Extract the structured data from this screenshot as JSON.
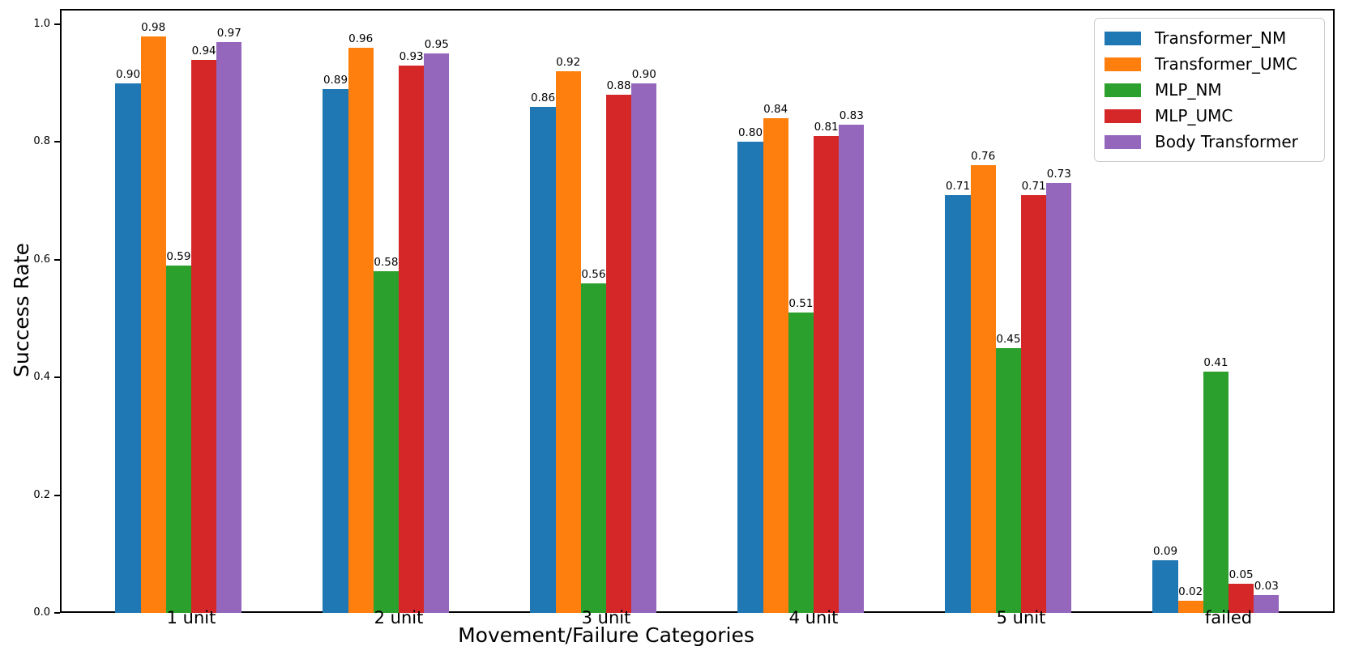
{
  "chart_data": {
    "type": "bar",
    "title": "",
    "xlabel": "Movement/Failure Categories",
    "ylabel": "Success Rate",
    "categories": [
      "1 unit",
      "2 unit",
      "3 unit",
      "4 unit",
      "5 unit",
      "failed"
    ],
    "series": [
      {
        "name": "Transformer_NM",
        "color": "#1f77b4",
        "values": [
          0.9,
          0.89,
          0.86,
          0.8,
          0.71,
          0.09
        ]
      },
      {
        "name": "Transformer_UMC",
        "color": "#ff7f0e",
        "values": [
          0.98,
          0.96,
          0.92,
          0.84,
          0.76,
          0.02
        ]
      },
      {
        "name": "MLP_NM",
        "color": "#2ca02c",
        "values": [
          0.59,
          0.58,
          0.56,
          0.51,
          0.45,
          0.41
        ]
      },
      {
        "name": "MLP_UMC",
        "color": "#d62728",
        "values": [
          0.94,
          0.93,
          0.88,
          0.81,
          0.71,
          0.05
        ]
      },
      {
        "name": "Body Transformer",
        "color": "#9467bd",
        "values": [
          0.97,
          0.95,
          0.9,
          0.83,
          0.73,
          0.03
        ]
      }
    ],
    "bar_value_labels_decimals": 2,
    "yticks": [
      0.0,
      0.2,
      0.4,
      0.6,
      0.8,
      1.0
    ],
    "ytick_labels": [
      "0.0",
      "0.2",
      "0.4",
      "0.6",
      "0.8",
      "1.0"
    ],
    "ylim": [
      0,
      1.026
    ],
    "legend_position": "upper-right",
    "grid": false,
    "background_color": "#ffffff",
    "text_color": "#000000"
  }
}
